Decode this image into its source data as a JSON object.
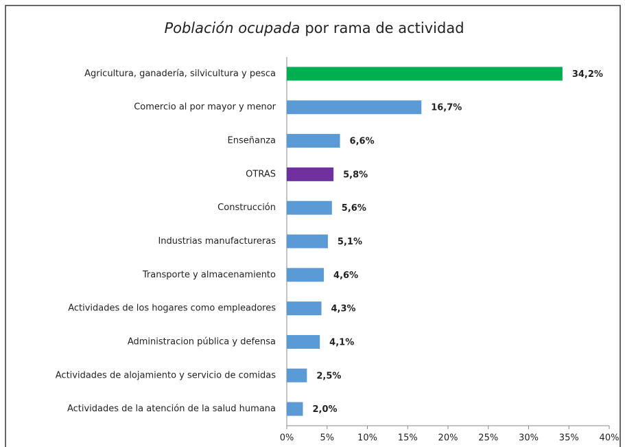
{
  "chart_data": {
    "type": "barh",
    "title": [
      "Población ocupada",
      "por rama de actividad"
    ],
    "categories": [
      "Agricultura, ganadería, silvicultura y pesca",
      "Comercio al por mayor y menor",
      "Enseñanza",
      "OTRAS",
      "Construcción",
      "Industrias manufactureras",
      "Transporte y almacenamiento",
      "Actividades de los hogares como empleadores",
      "Administracion pública y defensa",
      "Actividades de alojamiento y servicio de comidas",
      "Actividades de la atención de la salud humana"
    ],
    "values": [
      34.2,
      16.7,
      6.6,
      5.8,
      5.6,
      5.1,
      4.6,
      4.3,
      4.1,
      2.5,
      2.0
    ],
    "value_labels": [
      "34,2%",
      "16,7%",
      "6,6%",
      "5,8%",
      "5,6%",
      "5,1%",
      "4,6%",
      "4,3%",
      "4,1%",
      "2,5%",
      "2,0%"
    ],
    "colors": [
      "#00b050",
      "#5b9bd5",
      "#5b9bd5",
      "#7030a0",
      "#5b9bd5",
      "#5b9bd5",
      "#5b9bd5",
      "#5b9bd5",
      "#5b9bd5",
      "#5b9bd5",
      "#5b9bd5"
    ],
    "xlim": [
      0,
      40
    ],
    "xticks": [
      {
        "value": 0,
        "label": "0%"
      },
      {
        "value": 5,
        "label": "5%"
      },
      {
        "value": 10,
        "label": "10%"
      },
      {
        "value": 15,
        "label": "15%"
      },
      {
        "value": 20,
        "label": "20%"
      },
      {
        "value": 25,
        "label": "25%"
      },
      {
        "value": 30,
        "label": "30%"
      },
      {
        "value": 35,
        "label": "35%"
      },
      {
        "value": 40,
        "label": "40%"
      }
    ],
    "grid": false
  }
}
